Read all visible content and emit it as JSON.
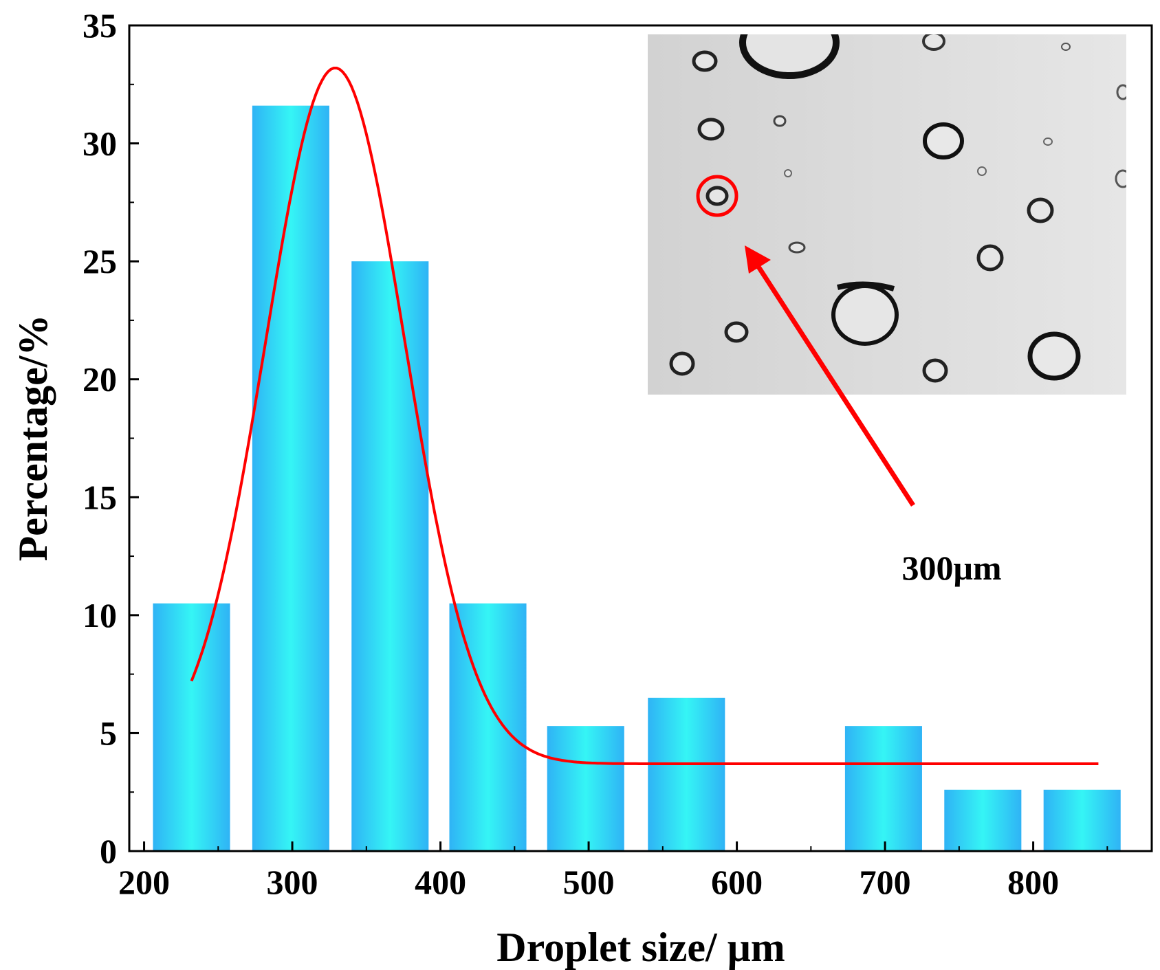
{
  "chart_data": {
    "type": "bar",
    "title": "",
    "xlabel": "Droplet size/ μm",
    "ylabel": "Percentage/%",
    "xlim": [
      190,
      880
    ],
    "ylim": [
      0,
      35
    ],
    "xticks": [
      200,
      300,
      400,
      500,
      600,
      700,
      800
    ],
    "yticks": [
      0,
      5,
      10,
      15,
      20,
      25,
      30,
      35
    ],
    "bar_width": 52,
    "bars": [
      {
        "x": 232,
        "value": 10.5
      },
      {
        "x": 299,
        "value": 31.6
      },
      {
        "x": 366,
        "value": 25.0
      },
      {
        "x": 432,
        "value": 10.5
      },
      {
        "x": 498,
        "value": 5.3
      },
      {
        "x": 566,
        "value": 6.5
      },
      {
        "x": 699,
        "value": 5.3
      },
      {
        "x": 766,
        "value": 2.6
      },
      {
        "x": 833,
        "value": 2.6
      }
    ],
    "fit_curve": {
      "type": "gaussian",
      "baseline": 3.7,
      "amplitude": 29.5,
      "center": 329,
      "sigma": 47,
      "x_start": 232,
      "x_end": 844
    },
    "inset": {
      "kind": "micrograph",
      "annotation": "300μm"
    },
    "colors": {
      "bar_edge": "#2fb3f5",
      "bar_center": "#35f5f5",
      "fit_line": "#ff0000",
      "axis": "#000000",
      "inset_bg": "#dcdcdc"
    }
  }
}
